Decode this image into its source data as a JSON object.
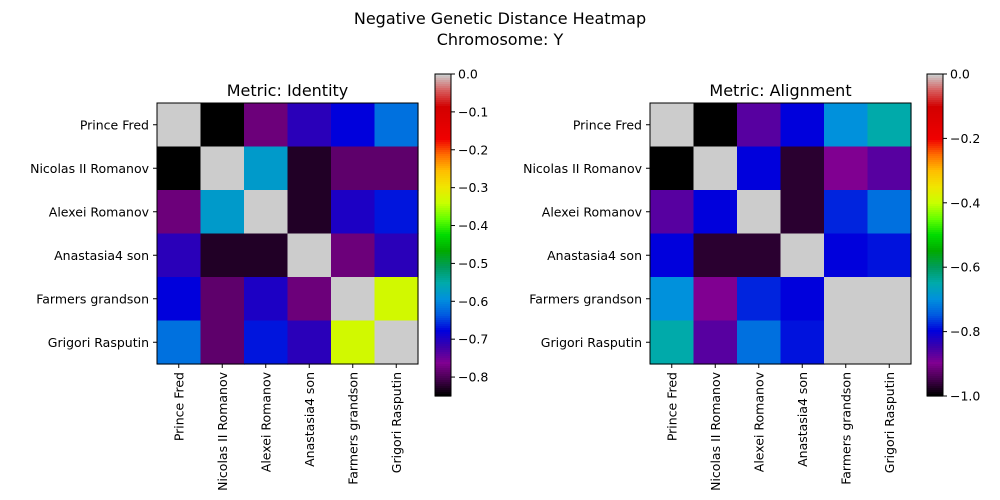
{
  "figure": {
    "suptitle_line1": "Negative Genetic Distance Heatmap",
    "suptitle_line2": "Chromosome: Y"
  },
  "chart_data": [
    {
      "type": "heatmap",
      "title": "Metric: Identity",
      "xlabel": "",
      "ylabel": "",
      "colormap": "nipy_spectral",
      "labels": [
        "Prince Fred",
        "Nicolas II Romanov",
        "Alexei Romanov",
        "Anastasia4 son",
        "Farmers grandson",
        "Grigori Rasputin"
      ],
      "diagonal_color": "#cccccc",
      "vmin": -0.85,
      "vmax": 0.0,
      "colorbar_ticks": [
        0.0,
        -0.1,
        -0.2,
        -0.3,
        -0.4,
        -0.5,
        -0.6,
        -0.7,
        -0.8
      ],
      "colorbar_tick_labels": [
        "0.0",
        "−0.1",
        "−0.2",
        "−0.3",
        "−0.4",
        "−0.5",
        "−0.6",
        "−0.7",
        "−0.8"
      ],
      "values": [
        [
          null,
          -0.85,
          -0.78,
          -0.71,
          -0.68,
          -0.62
        ],
        [
          -0.85,
          null,
          -0.58,
          -0.83,
          -0.79,
          -0.79
        ],
        [
          -0.78,
          -0.58,
          null,
          -0.83,
          -0.7,
          -0.67
        ],
        [
          -0.71,
          -0.83,
          -0.83,
          null,
          -0.78,
          -0.71
        ],
        [
          -0.68,
          -0.79,
          -0.7,
          -0.78,
          null,
          -0.33
        ],
        [
          -0.62,
          -0.79,
          -0.67,
          -0.71,
          -0.33,
          null
        ]
      ]
    },
    {
      "type": "heatmap",
      "title": "Metric: Alignment",
      "xlabel": "",
      "ylabel": "",
      "colormap": "nipy_spectral",
      "labels": [
        "Prince Fred",
        "Nicolas II Romanov",
        "Alexei Romanov",
        "Anastasia4 son",
        "Farmers grandson",
        "Grigori Rasputin"
      ],
      "diagonal_color": "#cccccc",
      "vmin": -1.0,
      "vmax": 0.0,
      "colorbar_ticks": [
        0.0,
        -0.2,
        -0.4,
        -0.6,
        -0.8,
        -1.0
      ],
      "colorbar_tick_labels": [
        "0.0",
        "−0.2",
        "−0.4",
        "−0.6",
        "−0.8",
        "−1.0"
      ],
      "values": [
        [
          null,
          -1.0,
          -0.87,
          -0.8,
          -0.7,
          -0.65
        ],
        [
          -1.0,
          null,
          -0.8,
          -0.97,
          -0.9,
          -0.87
        ],
        [
          -0.87,
          -0.8,
          null,
          -0.97,
          -0.78,
          -0.73
        ],
        [
          -0.8,
          -0.97,
          -0.97,
          null,
          -0.8,
          -0.79
        ],
        [
          -0.7,
          -0.9,
          -0.78,
          -0.8,
          null,
          null
        ],
        [
          -0.65,
          -0.87,
          -0.73,
          -0.79,
          null,
          null
        ]
      ]
    }
  ]
}
